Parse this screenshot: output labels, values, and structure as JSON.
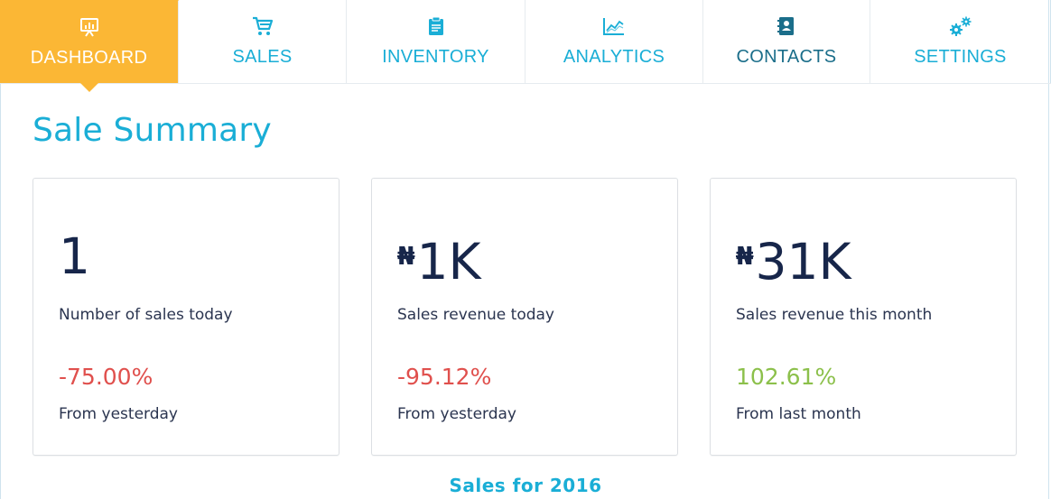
{
  "nav": {
    "tabs": [
      {
        "label": "DASHBOARD",
        "icon": "presentation-chart-icon",
        "active": true
      },
      {
        "label": "SALES",
        "icon": "shopping-cart-icon"
      },
      {
        "label": "INVENTORY",
        "icon": "clipboard-icon"
      },
      {
        "label": "ANALYTICS",
        "icon": "line-chart-icon"
      },
      {
        "label": "CONTACTS",
        "icon": "address-book-icon"
      },
      {
        "label": "SETTINGS",
        "icon": "gears-icon"
      }
    ]
  },
  "colors": {
    "accent": "#1aaed6",
    "active_tab": "#fbb735",
    "negative": "#e0504d",
    "positive": "#8cc04b",
    "value_text": "#17264a"
  },
  "summary": {
    "title": "Sale Summary",
    "cards": [
      {
        "currency": "",
        "value": "1",
        "caption": "Number of sales today",
        "change": "-75.00%",
        "compare": "From yesterday",
        "trend": "negative"
      },
      {
        "currency": "₦",
        "value": "1K",
        "caption": "Sales revenue today",
        "change": "-95.12%",
        "compare": "From yesterday",
        "trend": "negative"
      },
      {
        "currency": "₦",
        "value": "31K",
        "caption": "Sales revenue this month",
        "change": "102.61%",
        "compare": "From last month",
        "trend": "positive"
      }
    ]
  },
  "chart": {
    "title": "Sales for 2016"
  }
}
